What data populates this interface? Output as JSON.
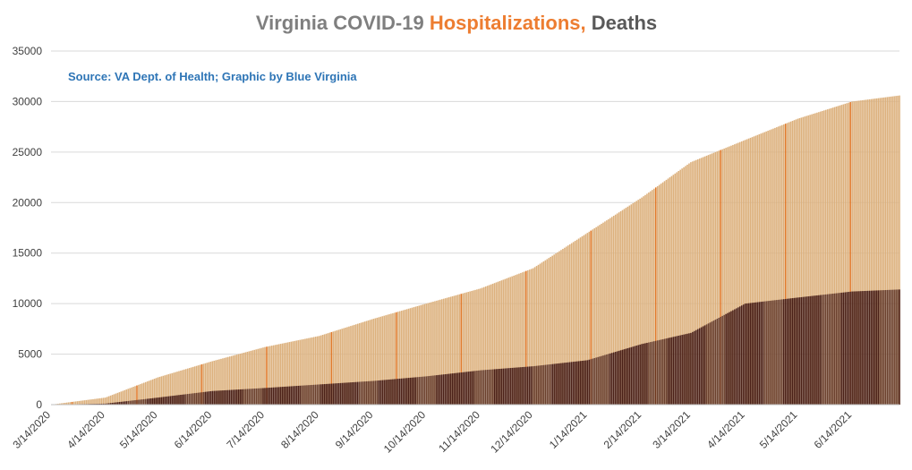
{
  "chart_data": {
    "type": "bar",
    "title_parts": [
      {
        "text": "Virginia COVID-19 ",
        "color": "#7f7f7f"
      },
      {
        "text": "Hospitalizations,",
        "color": "#ed7d31"
      },
      {
        "text": " Deaths",
        "color": "#595959"
      }
    ],
    "source_note": "Source: VA Dept. of Health; Graphic by Blue Virginia",
    "ylim": [
      0,
      35000
    ],
    "y_ticks": [
      0,
      5000,
      10000,
      15000,
      20000,
      25000,
      30000,
      35000
    ],
    "x_ticks": [
      "3/14/2020",
      "4/14/2020",
      "5/14/2020",
      "6/14/2020",
      "7/14/2020",
      "8/14/2020",
      "9/14/2020",
      "10/14/2020",
      "11/14/2020",
      "12/14/2020",
      "1/14/2021",
      "2/14/2021",
      "3/14/2021",
      "4/14/2021",
      "5/14/2021",
      "6/14/2021"
    ],
    "gridlines": true,
    "legend": "none",
    "series": [
      {
        "key": "hospitalizations",
        "color": "#dcb07c",
        "values": [
          0,
          700,
          2700,
          4300,
          5700,
          6800,
          8500,
          10000,
          11500,
          13500,
          17000,
          20500,
          24000,
          26200,
          28300,
          30000,
          30600
        ]
      },
      {
        "key": "deaths",
        "color": "#4a1f16",
        "values": [
          0,
          100,
          700,
          1350,
          1650,
          2000,
          2350,
          2800,
          3400,
          3800,
          4400,
          6000,
          7100,
          10000,
          10600,
          11200,
          11400
        ]
      }
    ],
    "series_dates": [
      "3/14/2020",
      "4/14/2020",
      "5/14/2020",
      "6/14/2020",
      "7/14/2020",
      "8/14/2020",
      "9/14/2020",
      "10/14/2020",
      "11/14/2020",
      "12/14/2020",
      "1/14/2021",
      "2/14/2021",
      "3/14/2021",
      "4/14/2021",
      "5/14/2021",
      "6/14/2021",
      "7/11/2021"
    ],
    "colors": {
      "grid": "#d9d9d9",
      "axis": "#bfbfbf",
      "source": "#2e75b6",
      "hosp_highlight": "#e07a2b",
      "deaths_light": "#ffffff"
    }
  }
}
